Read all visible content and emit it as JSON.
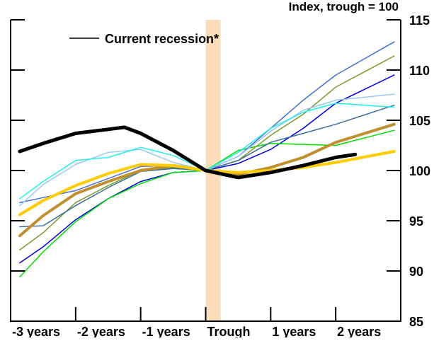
{
  "chart_data": {
    "type": "line",
    "title": "",
    "unit_label": "Index, trough = 100",
    "xlim": [
      -3,
      3
    ],
    "ylim": [
      85,
      115
    ],
    "x_ticks": [
      {
        "value": -3,
        "label": "-3 years"
      },
      {
        "value": -2,
        "label": "-2 years"
      },
      {
        "value": -1,
        "label": "-1 years"
      },
      {
        "value": 0,
        "label": "Trough"
      },
      {
        "value": 1,
        "label": "1 years"
      },
      {
        "value": 2,
        "label": "2 years"
      }
    ],
    "y_ticks": [
      85,
      90,
      95,
      100,
      105,
      110,
      115
    ],
    "y_axis_side": "right",
    "grid": false,
    "shaded_band": {
      "x": [
        0,
        0.23
      ],
      "color": "#FCDDBB"
    },
    "legend": {
      "placement": "top-left",
      "entries": [
        {
          "label": "Current recession*",
          "color": "#000000"
        }
      ]
    },
    "series": [
      {
        "color": "#0000DD",
        "width": 1.5,
        "x": [
          -2.86,
          -2.5,
          -2,
          -1.5,
          -1,
          -0.5,
          0,
          0.5,
          1,
          1.5,
          2,
          2.9
        ],
        "y": [
          90.8,
          92.4,
          95.1,
          97.2,
          98.9,
          99.8,
          100,
          100.7,
          102.1,
          104.2,
          106.7,
          109.5
        ]
      },
      {
        "color": "#00DD00",
        "width": 1.5,
        "x": [
          -2.86,
          -2.5,
          -2,
          -1.5,
          -1,
          -0.5,
          0,
          0.5,
          1,
          1.5,
          2,
          2.9
        ],
        "y": [
          89.4,
          91.9,
          94.9,
          97.2,
          98.7,
          99.8,
          100,
          102,
          102.7,
          102.6,
          102.5,
          104
        ]
      },
      {
        "color": "#7A9A2A",
        "width": 1.5,
        "x": [
          -2.86,
          -2.5,
          -2,
          -1.5,
          -1,
          -0.5,
          0,
          0.5,
          1,
          1.5,
          2,
          2.9
        ],
        "y": [
          92.1,
          93.8,
          96.8,
          98.5,
          100,
          100.3,
          100,
          101,
          103.5,
          105.6,
          108.3,
          111.4
        ]
      },
      {
        "color": "#3A6E9E",
        "width": 1.5,
        "x": [
          -2.86,
          -2.5,
          -2,
          -1.5,
          -1,
          -0.5,
          0,
          0.5,
          1,
          1.5,
          2,
          2.9
        ],
        "y": [
          94.4,
          94.5,
          96.5,
          98.3,
          99.9,
          100.2,
          100,
          101,
          102.8,
          103.7,
          104.6,
          106.5
        ]
      },
      {
        "color": "#4A6ED0",
        "width": 1.5,
        "x": [
          -2.86,
          -2.5,
          -2,
          -1.5,
          -1,
          -0.5,
          0,
          0.5,
          1,
          1.5,
          2,
          2.9
        ],
        "y": [
          96.8,
          97.3,
          98,
          99.2,
          100.4,
          100.5,
          100,
          101.4,
          104.2,
          107,
          109.5,
          112.8
        ]
      },
      {
        "color": "#9CC8EC",
        "width": 1.5,
        "x": [
          -2.86,
          -2.5,
          -2,
          -1.5,
          -1,
          -0.5,
          0,
          0.5,
          1,
          1.5,
          2,
          2.9
        ],
        "y": [
          96.5,
          98.6,
          100.6,
          101.8,
          102.1,
          100.8,
          100,
          101.4,
          103.9,
          106,
          107,
          107.6
        ]
      },
      {
        "color": "#22EEEE",
        "width": 1.5,
        "x": [
          -2.86,
          -2.5,
          -2,
          -1.5,
          -1,
          -0.5,
          0,
          0.5,
          1,
          1.5,
          2,
          2.9
        ],
        "y": [
          97.2,
          98.9,
          101,
          101.3,
          102.3,
          101.5,
          100,
          101.8,
          104.2,
          105.8,
          106.7,
          106.3
        ]
      },
      {
        "color": "#C09030",
        "width": 4,
        "x": [
          -2.86,
          -2.5,
          -2,
          -1.5,
          -1,
          -0.5,
          0,
          0.5,
          1,
          1.5,
          2,
          2.9
        ],
        "y": [
          93.5,
          95.5,
          97.7,
          98.9,
          100,
          100.5,
          100,
          99.6,
          100.3,
          101.3,
          102.8,
          104.6
        ]
      },
      {
        "color": "#FFCC00",
        "width": 4,
        "x": [
          -2.86,
          -2.5,
          -2,
          -1.5,
          -1,
          -0.5,
          0,
          0.5,
          1,
          1.5,
          2,
          2.9
        ],
        "y": [
          95.6,
          97,
          98.5,
          99.7,
          100.6,
          100.5,
          100,
          99.8,
          100,
          100.3,
          100.8,
          101.9
        ]
      },
      {
        "name": "Current recession*",
        "color": "#000000",
        "width": 5,
        "x": [
          -2.86,
          -2.5,
          -2,
          -1.5,
          -1.25,
          -1,
          -0.5,
          0,
          0.5,
          1,
          1.5,
          2,
          2.3
        ],
        "y": [
          101.9,
          102.7,
          103.7,
          104.1,
          104.3,
          103.7,
          102,
          100,
          99.3,
          99.8,
          100.5,
          101.3,
          101.6
        ]
      }
    ]
  }
}
